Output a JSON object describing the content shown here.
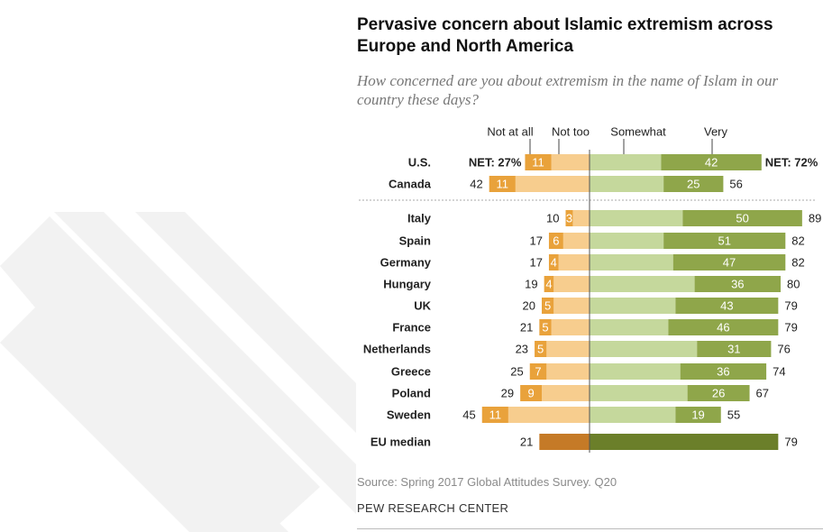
{
  "title": "Pervasive concern about Islamic extremism across Europe and North America",
  "subtitle": "How concerned are you about extremism in the name of Islam in our country these days?",
  "source": "Source: Spring 2017 Global Attitudes Survey. Q20",
  "brand": "PEW RESEARCH CENTER",
  "colors": {
    "not_at_all": "#e9a23b",
    "not_too": "#f7cd8e",
    "somewhat": "#c5d89c",
    "very": "#8fa64a",
    "median_not": "#c57a27",
    "median_very": "#6b7f2a"
  },
  "chart_data": {
    "type": "bar",
    "stacked": true,
    "diverging": true,
    "legend": [
      "Not at all",
      "Not too",
      "Somewhat",
      "Very"
    ],
    "rows": [
      {
        "country": "U.S.",
        "not_at_all": 11,
        "net_not": 27,
        "very": 42,
        "net_concerned": 72,
        "net_not_label": "NET: 27%",
        "net_concerned_label": "NET: 72%",
        "group": "na"
      },
      {
        "country": "Canada",
        "not_at_all": 11,
        "net_not": 42,
        "very": 25,
        "net_concerned": 56,
        "group": "na"
      },
      {
        "country": "Italy",
        "not_at_all": 3,
        "net_not": 10,
        "very": 50,
        "net_concerned": 89,
        "group": "eu"
      },
      {
        "country": "Spain",
        "not_at_all": 6,
        "net_not": 17,
        "very": 51,
        "net_concerned": 82,
        "group": "eu"
      },
      {
        "country": "Germany",
        "not_at_all": 4,
        "net_not": 17,
        "very": 47,
        "net_concerned": 82,
        "group": "eu"
      },
      {
        "country": "Hungary",
        "not_at_all": 4,
        "net_not": 19,
        "very": 36,
        "net_concerned": 80,
        "group": "eu"
      },
      {
        "country": "UK",
        "not_at_all": 5,
        "net_not": 20,
        "very": 43,
        "net_concerned": 79,
        "group": "eu"
      },
      {
        "country": "France",
        "not_at_all": 5,
        "net_not": 21,
        "very": 46,
        "net_concerned": 79,
        "group": "eu"
      },
      {
        "country": "Netherlands",
        "not_at_all": 5,
        "net_not": 23,
        "very": 31,
        "net_concerned": 76,
        "group": "eu"
      },
      {
        "country": "Greece",
        "not_at_all": 7,
        "net_not": 25,
        "very": 36,
        "net_concerned": 74,
        "group": "eu"
      },
      {
        "country": "Poland",
        "not_at_all": 9,
        "net_not": 29,
        "very": 26,
        "net_concerned": 67,
        "group": "eu"
      },
      {
        "country": "Sweden",
        "not_at_all": 11,
        "net_not": 45,
        "very": 19,
        "net_concerned": 55,
        "group": "eu"
      },
      {
        "country": "EU median",
        "net_not": 21,
        "net_concerned": 79,
        "group": "median"
      }
    ]
  }
}
